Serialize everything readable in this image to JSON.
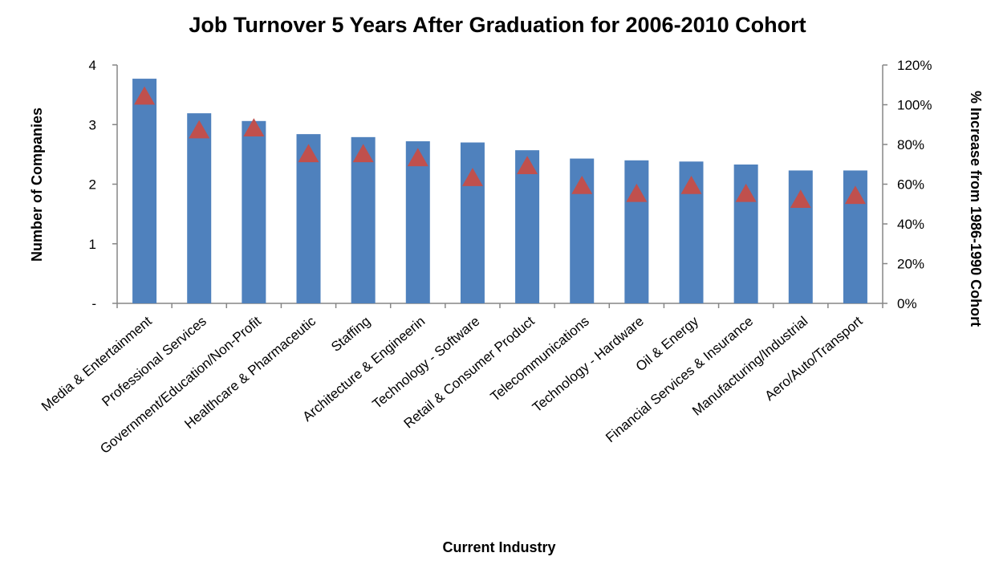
{
  "chart_data": {
    "type": "bar",
    "title": "Job Turnover 5 Years After Graduation for 2006-2010 Cohort",
    "xlabel": "Current Industry",
    "ylabel": "Number of Companies",
    "y2label": "% Increase from 1986-1990 Cohort",
    "ylim": [
      0,
      4
    ],
    "y2lim": [
      0,
      120
    ],
    "y_ticks": [
      "-",
      "1",
      "2",
      "3",
      "4"
    ],
    "y2_ticks": [
      "0%",
      "20%",
      "40%",
      "60%",
      "80%",
      "100%",
      "120%"
    ],
    "categories": [
      "Media & Entertainment",
      "Professional Services",
      "Government/Education/Non-Profit",
      "Healthcare & Pharmaceutic",
      "Staffing",
      "Architecture & Engineerin",
      "Technology - Software",
      "Retail & Consumer Product",
      "Telecommunications",
      "Technology - Hardware",
      "Oil & Energy",
      "Financial Services & Insurance",
      "Manufacturing/Industrial",
      "Aero/Auto/Transport"
    ],
    "series": [
      {
        "type": "bar",
        "axis": "left",
        "color": "#4f81bd",
        "values": [
          3.77,
          3.19,
          3.06,
          2.84,
          2.79,
          2.72,
          2.7,
          2.57,
          2.43,
          2.4,
          2.38,
          2.33,
          2.23,
          2.23
        ]
      },
      {
        "type": "scatter",
        "marker": "triangle",
        "axis": "right",
        "color": "#c0504d",
        "values": [
          104,
          87,
          88,
          75,
          75,
          73,
          63,
          69,
          59,
          55,
          59,
          55,
          52,
          54
        ]
      }
    ],
    "grid": false,
    "legend": "none"
  }
}
